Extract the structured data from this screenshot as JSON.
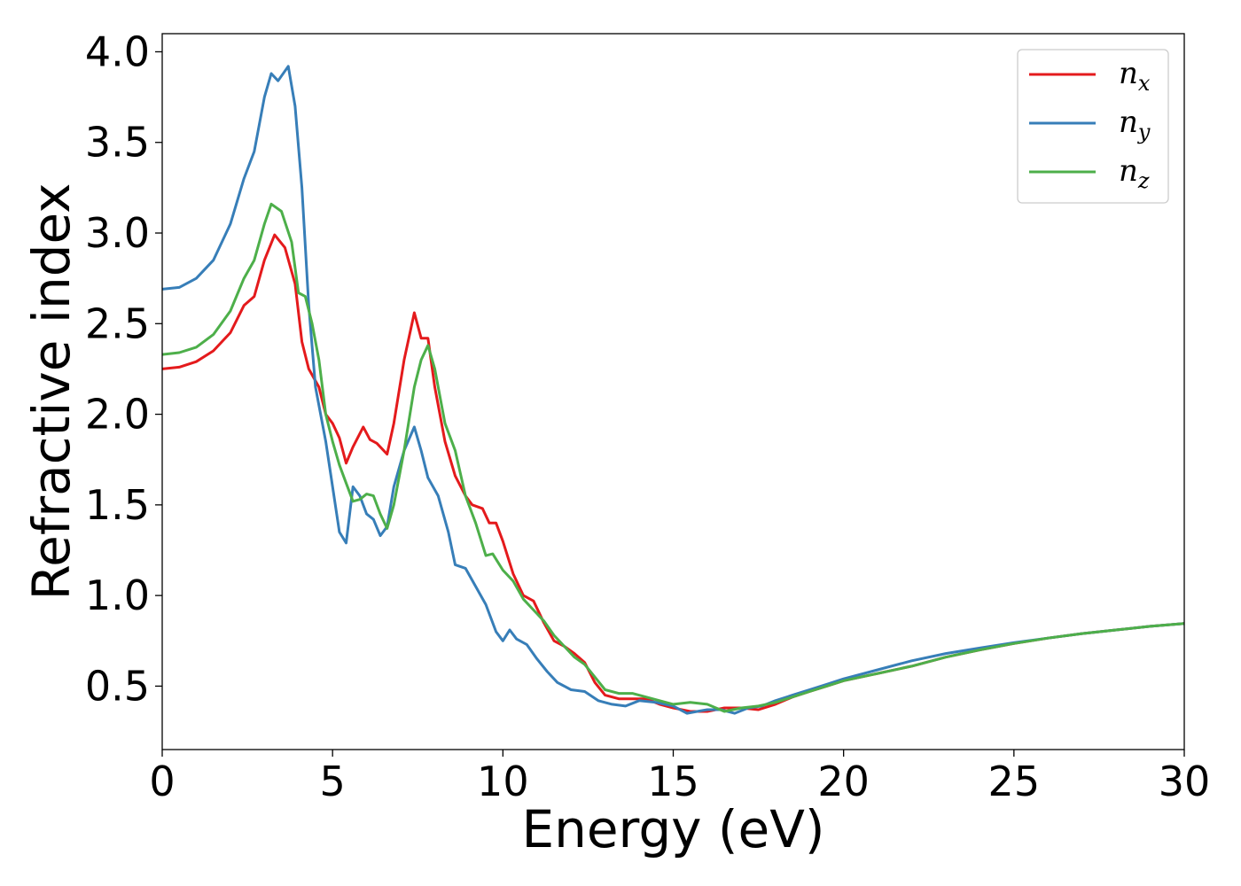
{
  "chart_data": {
    "type": "line",
    "title": "",
    "xlabel": "Energy (eV)",
    "ylabel": "Refractive index",
    "xlim": [
      0,
      30
    ],
    "ylim": [
      0.15,
      4.1
    ],
    "grid": false,
    "legend_position": "top-right",
    "x_ticks": [
      0,
      5,
      10,
      15,
      20,
      25,
      30
    ],
    "x_tick_labels": [
      "0",
      "5",
      "10",
      "15",
      "20",
      "25",
      "30"
    ],
    "y_ticks": [
      0.5,
      1.0,
      1.5,
      2.0,
      2.5,
      3.0,
      3.5,
      4.0
    ],
    "y_tick_labels": [
      "0.5",
      "1.0",
      "1.5",
      "2.0",
      "2.5",
      "3.0",
      "3.5",
      "4.0"
    ],
    "series": [
      {
        "name": "n",
        "subscript": "x",
        "color": "#e41a1c",
        "points": [
          [
            0,
            2.25
          ],
          [
            0.5,
            2.26
          ],
          [
            1.0,
            2.29
          ],
          [
            1.5,
            2.35
          ],
          [
            2.0,
            2.45
          ],
          [
            2.4,
            2.6
          ],
          [
            2.7,
            2.65
          ],
          [
            3.0,
            2.85
          ],
          [
            3.3,
            2.99
          ],
          [
            3.6,
            2.92
          ],
          [
            3.9,
            2.72
          ],
          [
            4.1,
            2.4
          ],
          [
            4.3,
            2.25
          ],
          [
            4.6,
            2.15
          ],
          [
            4.8,
            2.0
          ],
          [
            5.0,
            1.95
          ],
          [
            5.2,
            1.87
          ],
          [
            5.4,
            1.73
          ],
          [
            5.6,
            1.82
          ],
          [
            5.9,
            1.93
          ],
          [
            6.1,
            1.86
          ],
          [
            6.3,
            1.84
          ],
          [
            6.6,
            1.78
          ],
          [
            6.8,
            1.95
          ],
          [
            7.1,
            2.3
          ],
          [
            7.4,
            2.56
          ],
          [
            7.6,
            2.42
          ],
          [
            7.8,
            2.42
          ],
          [
            8.0,
            2.15
          ],
          [
            8.3,
            1.85
          ],
          [
            8.6,
            1.66
          ],
          [
            8.9,
            1.55
          ],
          [
            9.1,
            1.5
          ],
          [
            9.4,
            1.48
          ],
          [
            9.6,
            1.4
          ],
          [
            9.8,
            1.4
          ],
          [
            10.0,
            1.3
          ],
          [
            10.3,
            1.12
          ],
          [
            10.6,
            1.0
          ],
          [
            10.9,
            0.97
          ],
          [
            11.2,
            0.85
          ],
          [
            11.5,
            0.75
          ],
          [
            11.8,
            0.72
          ],
          [
            12.1,
            0.68
          ],
          [
            12.4,
            0.63
          ],
          [
            12.7,
            0.52
          ],
          [
            13.0,
            0.45
          ],
          [
            13.4,
            0.43
          ],
          [
            13.8,
            0.43
          ],
          [
            14.2,
            0.43
          ],
          [
            14.6,
            0.4
          ],
          [
            15.0,
            0.38
          ],
          [
            15.5,
            0.36
          ],
          [
            16.0,
            0.36
          ],
          [
            16.5,
            0.38
          ],
          [
            17.0,
            0.38
          ],
          [
            17.5,
            0.37
          ],
          [
            18.0,
            0.4
          ],
          [
            18.5,
            0.44
          ],
          [
            19.0,
            0.47
          ],
          [
            19.5,
            0.5
          ],
          [
            20.0,
            0.53
          ],
          [
            21.0,
            0.57
          ],
          [
            22.0,
            0.61
          ],
          [
            23.0,
            0.66
          ],
          [
            24.0,
            0.7
          ],
          [
            25.0,
            0.735
          ],
          [
            26.0,
            0.765
          ],
          [
            27.0,
            0.79
          ],
          [
            28.0,
            0.81
          ],
          [
            29.0,
            0.83
          ],
          [
            30.0,
            0.845
          ]
        ]
      },
      {
        "name": "n",
        "subscript": "y",
        "color": "#377eb8",
        "points": [
          [
            0,
            2.69
          ],
          [
            0.5,
            2.7
          ],
          [
            1.0,
            2.75
          ],
          [
            1.5,
            2.85
          ],
          [
            2.0,
            3.05
          ],
          [
            2.4,
            3.3
          ],
          [
            2.7,
            3.45
          ],
          [
            3.0,
            3.75
          ],
          [
            3.2,
            3.88
          ],
          [
            3.4,
            3.84
          ],
          [
            3.7,
            3.92
          ],
          [
            3.9,
            3.7
          ],
          [
            4.1,
            3.25
          ],
          [
            4.3,
            2.6
          ],
          [
            4.5,
            2.15
          ],
          [
            4.8,
            1.85
          ],
          [
            5.0,
            1.6
          ],
          [
            5.2,
            1.35
          ],
          [
            5.4,
            1.29
          ],
          [
            5.6,
            1.6
          ],
          [
            5.8,
            1.55
          ],
          [
            6.0,
            1.45
          ],
          [
            6.2,
            1.42
          ],
          [
            6.4,
            1.33
          ],
          [
            6.6,
            1.38
          ],
          [
            6.8,
            1.6
          ],
          [
            7.1,
            1.8
          ],
          [
            7.4,
            1.93
          ],
          [
            7.6,
            1.8
          ],
          [
            7.8,
            1.65
          ],
          [
            8.1,
            1.55
          ],
          [
            8.4,
            1.35
          ],
          [
            8.6,
            1.17
          ],
          [
            8.9,
            1.15
          ],
          [
            9.2,
            1.05
          ],
          [
            9.5,
            0.95
          ],
          [
            9.8,
            0.8
          ],
          [
            10.0,
            0.75
          ],
          [
            10.2,
            0.81
          ],
          [
            10.4,
            0.76
          ],
          [
            10.7,
            0.73
          ],
          [
            11.0,
            0.65
          ],
          [
            11.3,
            0.58
          ],
          [
            11.6,
            0.52
          ],
          [
            12.0,
            0.48
          ],
          [
            12.4,
            0.47
          ],
          [
            12.8,
            0.42
          ],
          [
            13.2,
            0.4
          ],
          [
            13.6,
            0.39
          ],
          [
            14.0,
            0.42
          ],
          [
            14.5,
            0.41
          ],
          [
            15.0,
            0.39
          ],
          [
            15.4,
            0.35
          ],
          [
            15.7,
            0.36
          ],
          [
            16.0,
            0.37
          ],
          [
            16.4,
            0.37
          ],
          [
            16.8,
            0.35
          ],
          [
            17.2,
            0.38
          ],
          [
            17.6,
            0.39
          ],
          [
            18.0,
            0.42
          ],
          [
            18.5,
            0.45
          ],
          [
            19.0,
            0.48
          ],
          [
            19.5,
            0.51
          ],
          [
            20.0,
            0.54
          ],
          [
            21.0,
            0.59
          ],
          [
            22.0,
            0.64
          ],
          [
            23.0,
            0.68
          ],
          [
            24.0,
            0.71
          ],
          [
            25.0,
            0.74
          ],
          [
            26.0,
            0.765
          ],
          [
            27.0,
            0.79
          ],
          [
            28.0,
            0.81
          ],
          [
            29.0,
            0.83
          ],
          [
            30.0,
            0.845
          ]
        ]
      },
      {
        "name": "n",
        "subscript": "z",
        "color": "#4daf4a",
        "points": [
          [
            0,
            2.33
          ],
          [
            0.5,
            2.34
          ],
          [
            1.0,
            2.37
          ],
          [
            1.5,
            2.44
          ],
          [
            2.0,
            2.57
          ],
          [
            2.4,
            2.75
          ],
          [
            2.7,
            2.85
          ],
          [
            3.0,
            3.05
          ],
          [
            3.2,
            3.16
          ],
          [
            3.5,
            3.12
          ],
          [
            3.8,
            2.95
          ],
          [
            4.0,
            2.67
          ],
          [
            4.2,
            2.65
          ],
          [
            4.4,
            2.5
          ],
          [
            4.6,
            2.3
          ],
          [
            4.8,
            2.0
          ],
          [
            5.0,
            1.85
          ],
          [
            5.2,
            1.72
          ],
          [
            5.4,
            1.62
          ],
          [
            5.6,
            1.52
          ],
          [
            5.8,
            1.53
          ],
          [
            6.0,
            1.56
          ],
          [
            6.2,
            1.55
          ],
          [
            6.4,
            1.45
          ],
          [
            6.6,
            1.37
          ],
          [
            6.8,
            1.5
          ],
          [
            7.1,
            1.8
          ],
          [
            7.4,
            2.15
          ],
          [
            7.6,
            2.3
          ],
          [
            7.8,
            2.38
          ],
          [
            8.0,
            2.25
          ],
          [
            8.3,
            1.95
          ],
          [
            8.6,
            1.8
          ],
          [
            8.9,
            1.55
          ],
          [
            9.2,
            1.4
          ],
          [
            9.5,
            1.22
          ],
          [
            9.7,
            1.23
          ],
          [
            10.0,
            1.14
          ],
          [
            10.3,
            1.08
          ],
          [
            10.6,
            0.98
          ],
          [
            10.9,
            0.92
          ],
          [
            11.2,
            0.86
          ],
          [
            11.5,
            0.78
          ],
          [
            11.8,
            0.72
          ],
          [
            12.1,
            0.66
          ],
          [
            12.4,
            0.62
          ],
          [
            12.7,
            0.55
          ],
          [
            13.0,
            0.48
          ],
          [
            13.4,
            0.46
          ],
          [
            13.8,
            0.46
          ],
          [
            14.2,
            0.44
          ],
          [
            14.6,
            0.42
          ],
          [
            15.0,
            0.4
          ],
          [
            15.5,
            0.41
          ],
          [
            16.0,
            0.4
          ],
          [
            16.5,
            0.36
          ],
          [
            17.0,
            0.38
          ],
          [
            17.5,
            0.39
          ],
          [
            18.0,
            0.41
          ],
          [
            18.5,
            0.44
          ],
          [
            19.0,
            0.47
          ],
          [
            19.5,
            0.5
          ],
          [
            20.0,
            0.53
          ],
          [
            21.0,
            0.57
          ],
          [
            22.0,
            0.61
          ],
          [
            23.0,
            0.66
          ],
          [
            24.0,
            0.7
          ],
          [
            25.0,
            0.735
          ],
          [
            26.0,
            0.765
          ],
          [
            27.0,
            0.79
          ],
          [
            28.0,
            0.81
          ],
          [
            29.0,
            0.83
          ],
          [
            30.0,
            0.845
          ]
        ]
      }
    ]
  }
}
